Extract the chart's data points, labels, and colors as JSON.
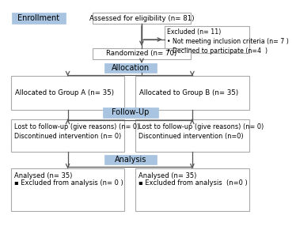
{
  "background_color": "#ffffff",
  "enrollment_label": "Enrollment",
  "enrollment_box_color": "#a8c4e0",
  "phase_box_color": "#a8c4e0",
  "border_color": "#aaaaaa",
  "arrow_color": "#555555",
  "assessed_text": "Assessed for eligibility (n= 81)",
  "excluded_text": "Excluded (n= 11)\n• Not meeting inclusion criteria (n= 7 )\n• Declined to participate (n=4  )",
  "randomized_text": "Randomized (n= 70)",
  "allocation_label": "Allocation",
  "groupA_text": "Allocated to Group A (n= 35)",
  "groupB_text": "Allocated to Group B (n= 35)",
  "followup_label": "Follow-Up",
  "followA_line1": "Lost to follow-up (give reasons) (n= 0)",
  "followA_line2": "Discontinued intervention (n= 0)",
  "followB_line1": "Lost to follow-up (give reasons) (n= 0)",
  "followB_line2": "Discontinued intervention (n=0)",
  "analysis_label": "Analysis",
  "analysisA_line1": "Analysed (n= 35)",
  "analysisA_line2": "▪ Excluded from analysis (n= 0 )",
  "analysisB_line1": "Analysed (n= 35)",
  "analysisB_line2": "▪ Excluded from analysis  (n=0 )"
}
